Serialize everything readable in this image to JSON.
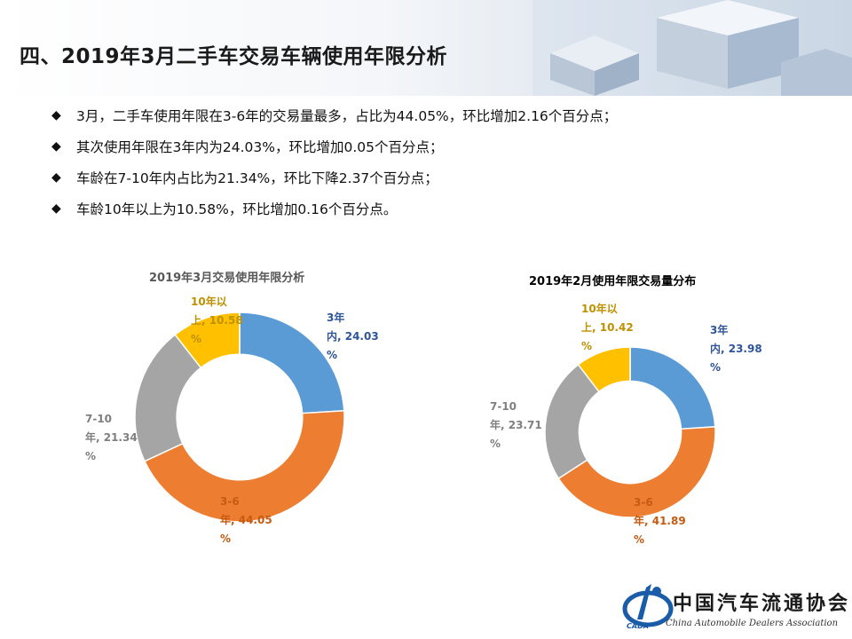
{
  "title": "四、2019年3月二手车交易车辆使用年限分析",
  "bullets": [
    "3月，二手车使用年限在3-6年的交易量最多，占比为44.05%，环比增加2.16个百分点；",
    "其次使用年限在3年内为24.03%，环比增加0.05个百分点；",
    "车龄在7-10年内占比为21.34%，环比下降2.37个百分点；",
    "车龄10年以上为10.58%，环比增加0.16个百分点。"
  ],
  "bullet_marker": "◆",
  "colors": {
    "within3": "#5b9bd5",
    "y3to6": "#ed7d31",
    "y7to10": "#a5a5a5",
    "over10": "#ffc000",
    "label_within3": "#2e5597",
    "label_y3to6": "#c55a11",
    "label_y7to10": "#7f7f7f",
    "label_over10": "#bf9000",
    "title_left": "#595959",
    "title_right": "#000000"
  },
  "chart_data": [
    {
      "type": "pie",
      "donut": true,
      "title": "2019年3月交易使用年限分析",
      "slices": [
        {
          "label": "3年内",
          "value": 24.03,
          "label_text": "3年\n内, 24.03\n%"
        },
        {
          "label": "3-6年",
          "value": 44.05,
          "label_text": "3-6\n年, 44.05\n%"
        },
        {
          "label": "7-10年",
          "value": 21.34,
          "label_text": "7-10\n年, 21.34\n%"
        },
        {
          "label": "10年以上",
          "value": 10.58,
          "label_text": "10年以\n上, 10.58\n%"
        }
      ]
    },
    {
      "type": "pie",
      "donut": true,
      "title": "2019年2月使用年限交易量分布",
      "slices": [
        {
          "label": "3年内",
          "value": 23.98,
          "label_text": "3年\n内, 23.98\n%"
        },
        {
          "label": "3-6年",
          "value": 41.89,
          "label_text": "3-6\n年, 41.89\n%"
        },
        {
          "label": "7-10年",
          "value": 23.71,
          "label_text": "7-10\n年, 23.71\n%"
        },
        {
          "label": "10年以上",
          "value": 10.42,
          "label_text": "10年以\n上, 10.42\n%"
        }
      ]
    }
  ],
  "logo": {
    "name": "中国汽车流通协会",
    "english": "China Automobile Dealers Association",
    "abbr": "CADA"
  }
}
